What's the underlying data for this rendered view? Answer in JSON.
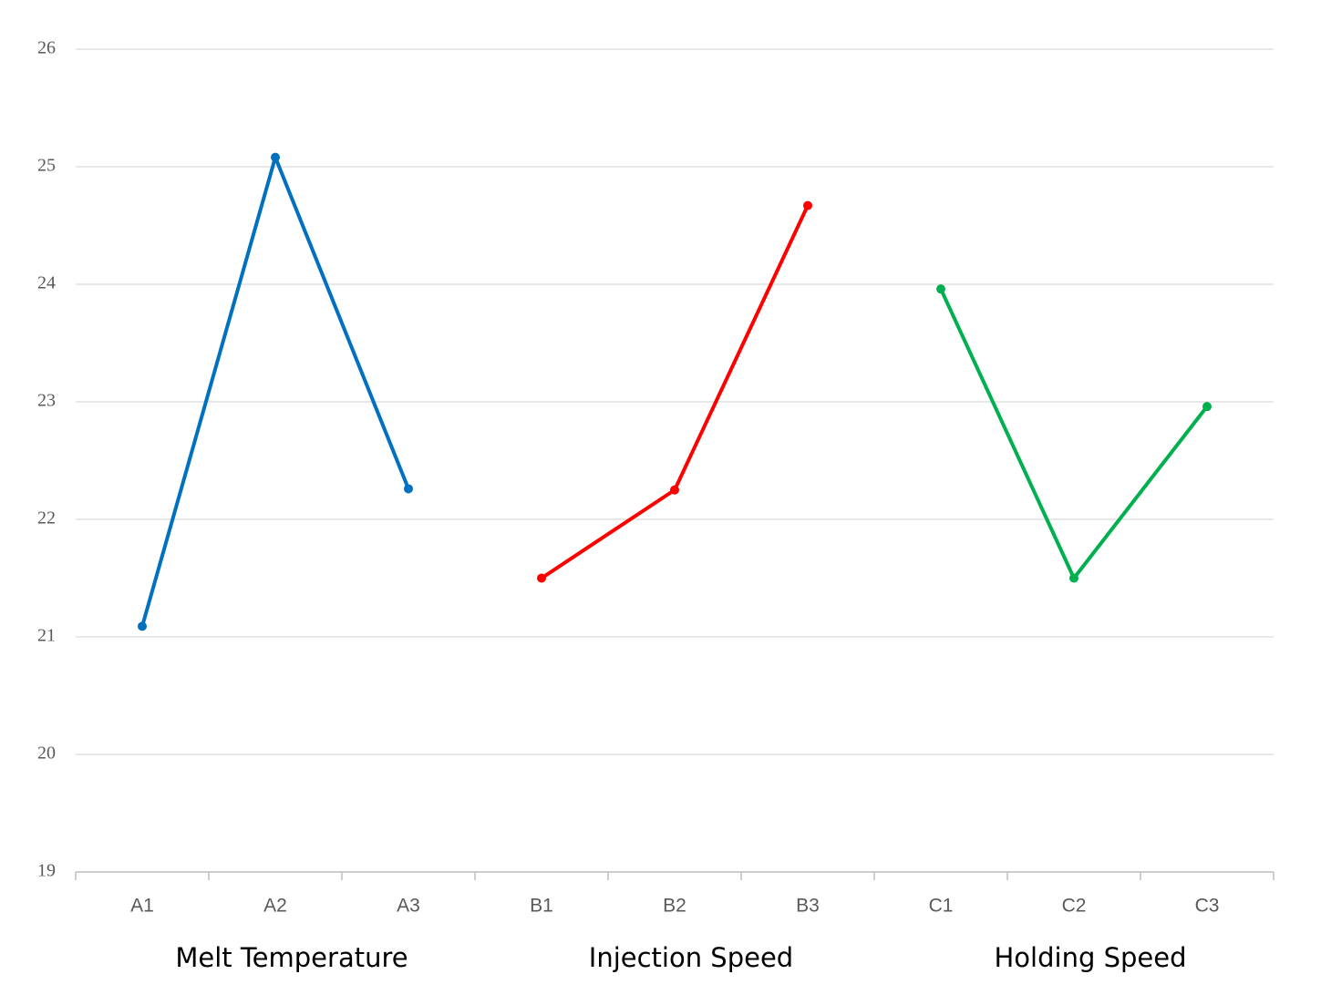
{
  "chart_data": {
    "type": "line",
    "categories": [
      "A1",
      "A2",
      "A3",
      "B1",
      "B2",
      "B3",
      "C1",
      "C2",
      "C3"
    ],
    "group_labels": [
      "Melt Temperature",
      "Injection Speed",
      "Holding Speed"
    ],
    "series": [
      {
        "color": "#0070c0",
        "values": [
          21.09,
          25.08,
          22.26,
          null,
          null,
          null,
          null,
          null,
          null
        ]
      },
      {
        "color": "#ff0000",
        "values": [
          null,
          null,
          null,
          21.5,
          22.25,
          24.67,
          null,
          null,
          null
        ]
      },
      {
        "color": "#00b050",
        "values": [
          null,
          null,
          null,
          null,
          null,
          null,
          23.96,
          21.5,
          22.96
        ]
      }
    ],
    "ylim": [
      19,
      26
    ],
    "yticks": [
      19,
      20,
      21,
      22,
      23,
      24,
      25,
      26
    ],
    "grid": true
  }
}
